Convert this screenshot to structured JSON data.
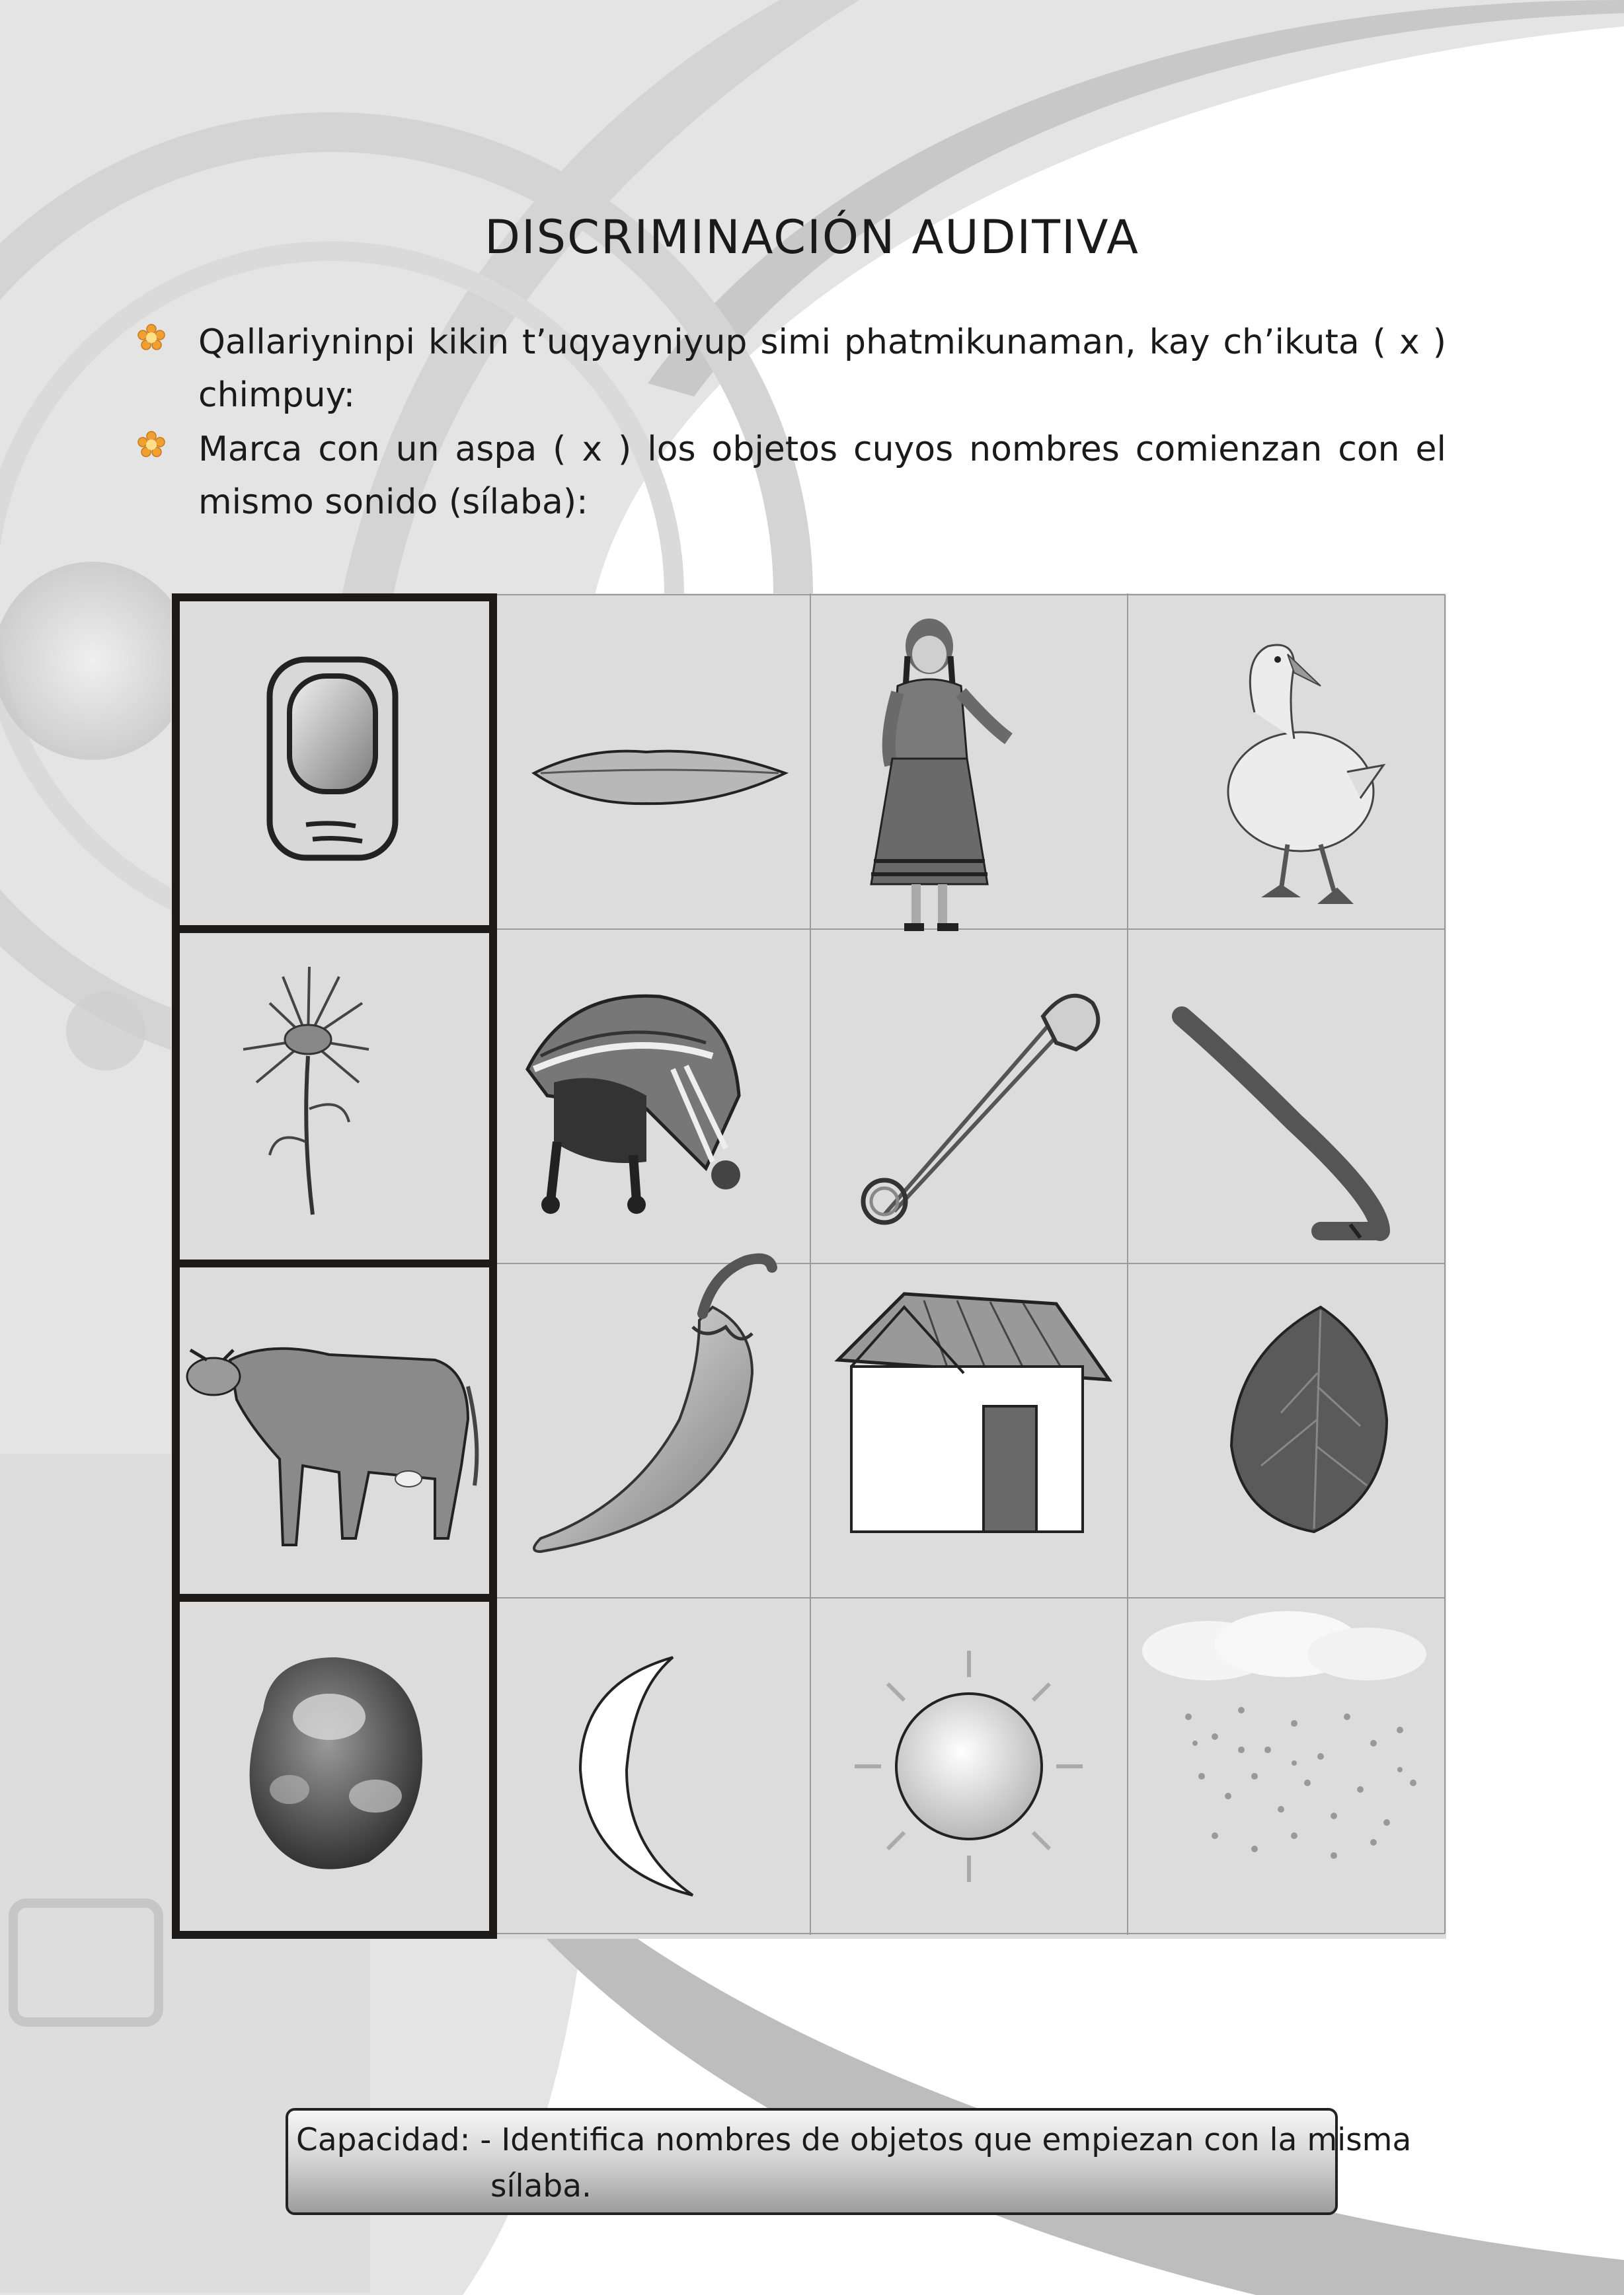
{
  "title": "DISCRIMINACIÓN AUDITIVA",
  "instructions": [
    {
      "icon": "flower-bullet-icon",
      "text": "Qallariyninpi kikin t’uqyayniyup simi phatmikunaman, kay ch’ikuta ( x ) chimpuy:"
    },
    {
      "icon": "flower-bullet-icon",
      "text": "Marca con un aspa ( x ) los objetos cuyos nombres comienzan con el mismo sonido (sílaba):"
    }
  ],
  "grid": {
    "rows": [
      [
        "fingernail-icon",
        "lips-icon",
        "girl-icon",
        "duck-icon"
      ],
      [
        "flower-icon",
        "chullo-hat-icon",
        "safety-pin-icon",
        "walking-stick-icon"
      ],
      [
        "cow-icon",
        "chili-pepper-icon",
        "house-icon",
        "leaf-icon"
      ],
      [
        "potato-icon",
        "moon-icon",
        "sun-icon",
        "rain-icon"
      ]
    ]
  },
  "capacity": {
    "label": "Capacidad: -",
    "text_line1": "Identifica nombres de objetos que empiezan con la misma",
    "text_line2": "sílaba."
  },
  "colors": {
    "bullet": "#f0a030",
    "grid_cell": "#dcdcdc",
    "frame": "#1e1a18"
  }
}
